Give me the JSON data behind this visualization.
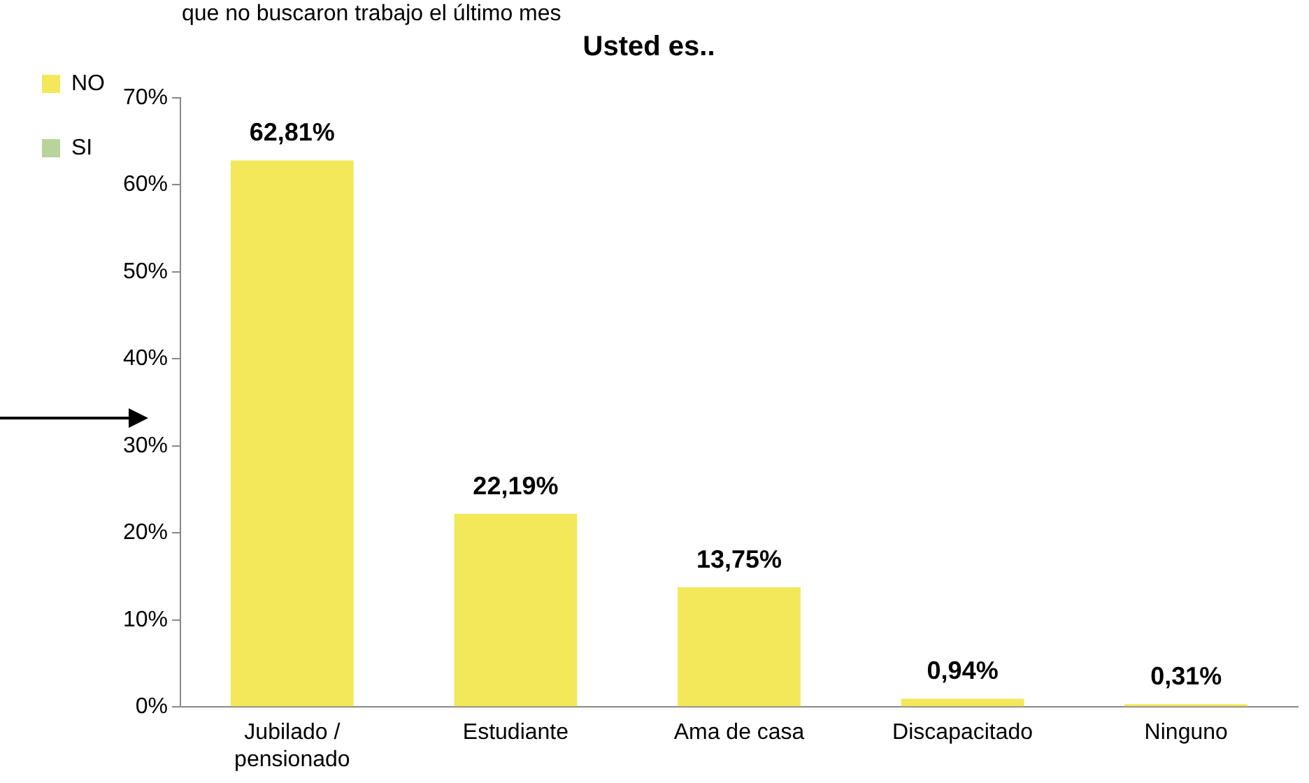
{
  "chart_data": {
    "type": "bar",
    "title": "Usted es..",
    "annotations": [
      "que no buscaron trabajo el último mes"
    ],
    "categories": [
      "Jubilado / pensionado",
      "Estudiante",
      "Ama de casa",
      "Discapacitado",
      "Ninguno"
    ],
    "series": [
      {
        "name": "NO",
        "color": "#f2e85a",
        "values": [
          62.81,
          22.19,
          13.75,
          0.94,
          0.31
        ],
        "value_labels": [
          "62,81%",
          "22,19%",
          "13,75%",
          "0,94%",
          "0,31%"
        ]
      },
      {
        "name": "SI",
        "color": "#b8d49a",
        "values": [
          null,
          null,
          null,
          null,
          null
        ]
      }
    ],
    "ylim": [
      0,
      70
    ],
    "yticks": [
      {
        "value": 0,
        "label": "0%"
      },
      {
        "value": 10,
        "label": "10%"
      },
      {
        "value": 20,
        "label": "20%"
      },
      {
        "value": 30,
        "label": "30%"
      },
      {
        "value": 40,
        "label": "40%"
      },
      {
        "value": 50,
        "label": "50%"
      },
      {
        "value": 60,
        "label": "60%"
      },
      {
        "value": 70,
        "label": "70%"
      }
    ],
    "grid": false,
    "legend": "top left"
  }
}
